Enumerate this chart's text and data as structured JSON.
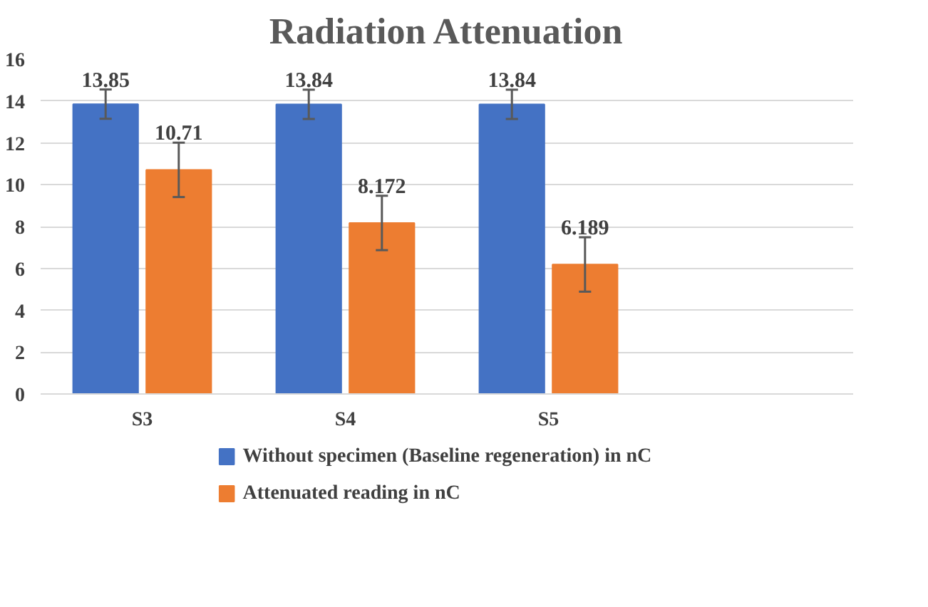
{
  "chart_data": {
    "type": "bar",
    "title": "Radiation Attenuation",
    "categories": [
      "S3",
      "S4",
      "S5",
      null
    ],
    "series": [
      {
        "name": "Without specimen (Baseline regeneration) in nC",
        "color": "#4472c4",
        "values": [
          13.85,
          13.84,
          13.84,
          null
        ],
        "errors": [
          0.7,
          0.7,
          0.7,
          null
        ]
      },
      {
        "name": "Attenuated reading in nC",
        "color": "#ed7d31",
        "values": [
          10.71,
          8.172,
          6.189,
          null
        ],
        "errors": [
          1.3,
          1.3,
          1.3,
          null
        ]
      }
    ],
    "ylim": [
      0,
      16
    ],
    "yticks": [
      0,
      2,
      4,
      6,
      8,
      10,
      12,
      14,
      16
    ],
    "grid": "y",
    "legend": "bottom",
    "data_labels": true
  }
}
